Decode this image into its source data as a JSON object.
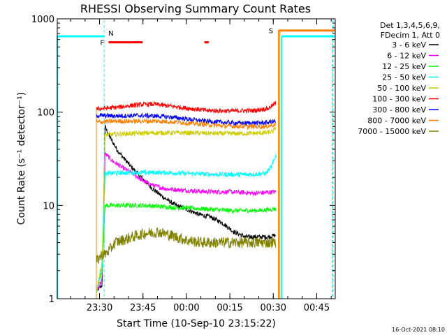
{
  "chart_data": {
    "type": "line",
    "title": "RHESSI Observing Summary Count Rates",
    "xlabel": "Start Time (10-Sep-10 23:15:22)",
    "ylabel": "Count Rate (s⁻¹ detector⁻¹)",
    "yscale": "log",
    "ylim": [
      1,
      1000
    ],
    "xlim_minutes": [
      0,
      96
    ],
    "x_unit": "minutes after 23:15:22",
    "x_ticks": [
      {
        "label": "23:30",
        "min": 14.6
      },
      {
        "label": "23:45",
        "min": 29.6
      },
      {
        "label": "00:00",
        "min": 44.6
      },
      {
        "label": "00:15",
        "min": 59.6
      },
      {
        "label": "00:30",
        "min": 74.6
      },
      {
        "label": "00:45",
        "min": 89.6
      }
    ],
    "y_ticks": [
      {
        "label": "1",
        "value": 1
      },
      {
        "label": "10",
        "value": 10
      },
      {
        "label": "100",
        "value": 100
      },
      {
        "label": "1000",
        "value": 1000
      }
    ],
    "legend_header": [
      "Det 1,3,4,5,6,9,",
      "FDecim 1, Att 0"
    ],
    "series": [
      {
        "name": "3 - 6 keV",
        "color": "#000000",
        "points": [
          [
            13.5,
            1.2
          ],
          [
            15.5,
            1.4
          ],
          [
            16.5,
            70
          ],
          [
            18,
            55
          ],
          [
            21,
            38
          ],
          [
            25,
            27
          ],
          [
            29,
            20
          ],
          [
            33,
            15
          ],
          [
            37,
            12
          ],
          [
            41,
            10
          ],
          [
            45,
            9
          ],
          [
            49,
            8
          ],
          [
            53,
            7.5
          ],
          [
            57,
            6.5
          ],
          [
            61,
            5.2
          ],
          [
            65,
            4.6
          ],
          [
            69,
            4.6
          ],
          [
            73,
            4.6
          ],
          [
            75.5,
            4.8
          ]
        ]
      },
      {
        "name": "6 - 12 keV",
        "color": "#ff00ff",
        "points": [
          [
            13.5,
            1.2
          ],
          [
            15.5,
            1.6
          ],
          [
            16.5,
            36
          ],
          [
            19,
            30
          ],
          [
            22,
            26
          ],
          [
            26,
            22
          ],
          [
            30,
            18
          ],
          [
            34,
            16
          ],
          [
            38,
            15
          ],
          [
            44,
            14.5
          ],
          [
            52,
            14
          ],
          [
            60,
            14
          ],
          [
            68,
            13.5
          ],
          [
            75.5,
            14
          ]
        ]
      },
      {
        "name": "12 - 25 keV",
        "color": "#00ff00",
        "points": [
          [
            13.5,
            1.2
          ],
          [
            15.5,
            2
          ],
          [
            16.5,
            10
          ],
          [
            20,
            10
          ],
          [
            30,
            10
          ],
          [
            40,
            9.5
          ],
          [
            50,
            9.2
          ],
          [
            60,
            8.8
          ],
          [
            70,
            8.8
          ],
          [
            75.5,
            9.2
          ]
        ]
      },
      {
        "name": "25 - 50 keV",
        "color": "#00ffff",
        "points": [
          [
            13.5,
            1.2
          ],
          [
            15.5,
            2.2
          ],
          [
            16.5,
            22
          ],
          [
            25,
            22.5
          ],
          [
            35,
            22.5
          ],
          [
            45,
            22
          ],
          [
            55,
            21.5
          ],
          [
            65,
            21.5
          ],
          [
            72,
            22
          ],
          [
            74,
            26
          ],
          [
            75.5,
            35
          ]
        ]
      },
      {
        "name": "50 - 100 keV",
        "color": "#cccc00",
        "points": [
          [
            13.5,
            1.2
          ],
          [
            15.5,
            2.5
          ],
          [
            16.5,
            57
          ],
          [
            25,
            59
          ],
          [
            35,
            60
          ],
          [
            45,
            60
          ],
          [
            55,
            59
          ],
          [
            65,
            59
          ],
          [
            72,
            60
          ],
          [
            74.5,
            62
          ],
          [
            75.5,
            70
          ]
        ]
      },
      {
        "name": "100 - 300 keV",
        "color": "#ff0000",
        "points": [
          [
            13.5,
            108
          ],
          [
            20,
            112
          ],
          [
            28,
            120
          ],
          [
            33,
            122
          ],
          [
            38,
            117
          ],
          [
            45,
            110
          ],
          [
            52,
            104
          ],
          [
            60,
            103
          ],
          [
            68,
            104
          ],
          [
            73,
            110
          ],
          [
            75.5,
            125
          ]
        ]
      },
      {
        "name": "300 - 800 keV",
        "color": "#0000ff",
        "points": [
          [
            13.5,
            92
          ],
          [
            20,
            91
          ],
          [
            28,
            92
          ],
          [
            34,
            91
          ],
          [
            40,
            88
          ],
          [
            48,
            82
          ],
          [
            56,
            78
          ],
          [
            64,
            76
          ],
          [
            72,
            77
          ],
          [
            75.5,
            80
          ]
        ]
      },
      {
        "name": "800 - 7000 keV",
        "color": "#ff8000",
        "points": [
          [
            13.5,
            78
          ],
          [
            20,
            80
          ],
          [
            28,
            80
          ],
          [
            35,
            80
          ],
          [
            42,
            78
          ],
          [
            50,
            74
          ],
          [
            58,
            71
          ],
          [
            66,
            70
          ],
          [
            72,
            70
          ],
          [
            75.5,
            74
          ]
        ]
      },
      {
        "name": "7000 - 15000 keV",
        "color": "#808000",
        "points": [
          [
            13.5,
            2.5
          ],
          [
            15.5,
            3
          ],
          [
            16.5,
            3
          ],
          [
            18,
            3.3
          ],
          [
            20,
            4
          ],
          [
            22,
            4.2
          ],
          [
            25,
            4.5
          ],
          [
            30,
            5
          ],
          [
            35,
            5.2
          ],
          [
            40,
            4.7
          ],
          [
            45,
            4.2
          ],
          [
            50,
            4
          ],
          [
            55,
            4
          ],
          [
            60,
            4
          ],
          [
            65,
            4
          ],
          [
            70,
            4
          ],
          [
            75.5,
            4
          ]
        ]
      }
    ],
    "annotations": {
      "flare_label": "F",
      "night_label": "N",
      "saa_label": "S",
      "flare_intervals": [
        [
          17.7,
          29.5
        ],
        [
          50.8,
          52.3
        ]
      ],
      "night_intervals": [
        [
          -5,
          16.2
        ]
      ],
      "night_marker_min": 16.2,
      "day_intervals": [
        [
          77.5,
          101
        ]
      ],
      "day_marker_min": 95.2,
      "saa_intervals": [
        [
          76.4,
          101
        ]
      ],
      "saa_marker_min": 76.4
    },
    "colors": {
      "night": "#00ffff",
      "flare": "#ff0000",
      "saa": "#ff8000"
    }
  },
  "timestamp": "16-Oct-2021 08:10"
}
